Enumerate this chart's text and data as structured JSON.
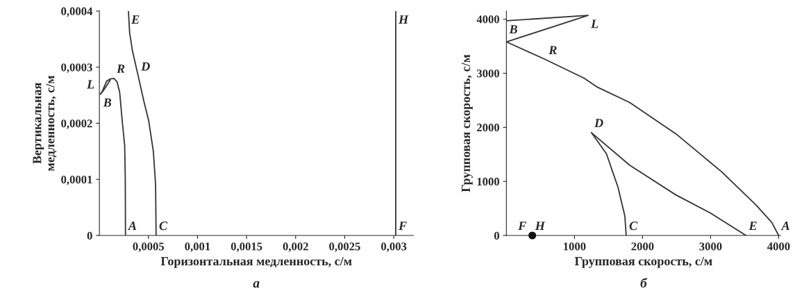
{
  "chart_data": [
    {
      "type": "line",
      "xlabel": "Горизонтальная медленность, с/м",
      "ylabel": "Вертикальная\nмедленность, с/м",
      "xlim": [
        0,
        0.0032
      ],
      "ylim": [
        0,
        0.0004
      ],
      "xticks": [
        {
          "value": 0.0005,
          "label": "0,0005"
        },
        {
          "value": 0.001,
          "label": "0,001"
        },
        {
          "value": 0.0015,
          "label": "0,0015"
        },
        {
          "value": 0.002,
          "label": "0,002"
        },
        {
          "value": 0.0025,
          "label": "0,0025"
        },
        {
          "value": 0.003,
          "label": "0,003"
        }
      ],
      "yticks": [
        {
          "value": 0,
          "label": "0"
        },
        {
          "value": 0.0001,
          "label": "0,0001"
        },
        {
          "value": 0.0002,
          "label": "0,0002"
        },
        {
          "value": 0.0003,
          "label": "0,0003"
        },
        {
          "value": 0.0004,
          "label": "0,0004"
        }
      ],
      "marker": "none",
      "line_style": "solid",
      "series": [
        {
          "color": "#333333",
          "x": [
            0.000266,
            0.000264,
            0.000258,
            0.000235,
            0.000207,
            0.00018,
            0.000147,
            0.00011,
            7.4e-05,
            3e-05,
            1e-05
          ],
          "values": [
            0,
            0.0001,
            0.00016,
            0.0002,
            0.000255,
            0.000274,
            0.00028,
            0.000279,
            0.000275,
            0.000257,
            0.000252
          ]
        },
        {
          "color": "#333333",
          "x": [
            1e-05,
            4e-05,
            7e-05,
            0.00011
          ],
          "values": [
            0.000252,
            0.000258,
            0.000266,
            0.000277
          ]
        },
        {
          "color": "#333333",
          "x": [
            0.000578,
            0.000573,
            0.00055,
            0.000502,
            0.000455,
            0.000396,
            0.000337,
            0.000308,
            0.000296
          ],
          "values": [
            0,
            9e-05,
            0.00015,
            0.000205,
            0.000238,
            0.000284,
            0.000329,
            0.000362,
            0.0004
          ]
        },
        {
          "color": "#333333",
          "x": [
            0.00302,
            0.00302
          ],
          "values": [
            0,
            0.0004
          ]
        }
      ],
      "annotations": [
        {
          "text": "E",
          "x": 0.000296,
          "y": 0.0004
        },
        {
          "text": "D",
          "x": 0.000396,
          "y": 0.000284
        },
        {
          "text": "R",
          "x": 0.000147,
          "y": 0.00028
        },
        {
          "text": "B",
          "x": 1e-05,
          "y": 0.000252
        },
        {
          "text": "L",
          "x": 1e-05,
          "y": 0.000252
        },
        {
          "text": "A",
          "x": 0.000266,
          "y": 0
        },
        {
          "text": "C",
          "x": 0.000578,
          "y": 0
        },
        {
          "text": "H",
          "x": 0.00302,
          "y": 0.0004
        },
        {
          "text": "F",
          "x": 0.00302,
          "y": 0
        },
        "а"
      ]
    },
    {
      "type": "line",
      "xlabel": "Групповая скорость, с/м",
      "ylabel": "Групповая скорость, с/м",
      "xlim": [
        0,
        4030
      ],
      "ylim": [
        0,
        4150
      ],
      "xticks": [
        1000,
        2000,
        3000,
        4000
      ],
      "yticks": [
        0,
        1000,
        2000,
        3000,
        4000
      ],
      "marker": "none",
      "line_style": "solid",
      "series": [
        {
          "color": "#333333",
          "x": [
            0,
            1200,
            0,
            580,
            1140,
            1340,
            1810,
            2490,
            3160,
            3670,
            3900,
            4000
          ],
          "values": [
            3970,
            4070,
            3580,
            3250,
            2910,
            2740,
            2460,
            1880,
            1180,
            560,
            240,
            0
          ]
        },
        {
          "color": "#333333",
          "x": [
            1250,
            1470,
            1640,
            1740,
            1760
          ],
          "values": [
            1900,
            1510,
            890,
            360,
            0
          ]
        },
        {
          "color": "#333333",
          "x": [
            1250,
            1810,
            2490,
            2990,
            3520
          ],
          "values": [
            1900,
            1300,
            750,
            420,
            0
          ]
        },
        {
          "type": "scatter",
          "color": "#111111",
          "marker": "circle",
          "x": [
            380
          ],
          "values": [
            0
          ]
        }
      ],
      "annotations": [
        {
          "text": "B",
          "x": 0,
          "y": 3970
        },
        {
          "text": "L",
          "x": 1200,
          "y": 4070
        },
        {
          "text": "R",
          "x": 580,
          "y": 3250
        },
        {
          "text": "D",
          "x": 1250,
          "y": 1900
        },
        {
          "text": "C",
          "x": 1760,
          "y": 0
        },
        {
          "text": "E",
          "x": 3520,
          "y": 0
        },
        {
          "text": "A",
          "x": 4000,
          "y": 0
        },
        {
          "text": "F",
          "x": 380,
          "y": 0
        },
        {
          "text": "H",
          "x": 380,
          "y": 0
        },
        "б"
      ]
    }
  ]
}
